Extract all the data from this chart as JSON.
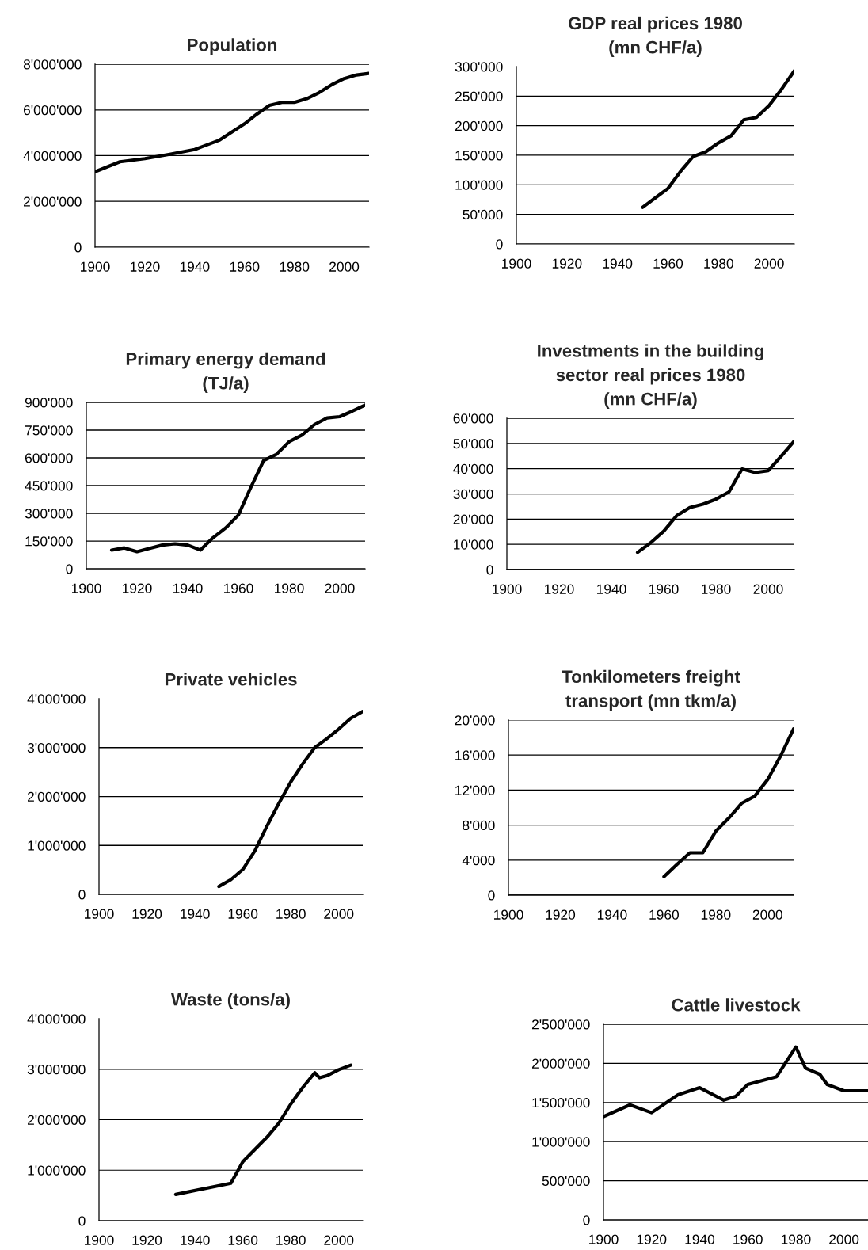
{
  "chart_data": [
    {
      "type": "line",
      "title": "Population",
      "color": "#000000",
      "grid": "y",
      "xlim": [
        1900,
        2010
      ],
      "xticks": [
        1900,
        1920,
        1940,
        1960,
        1980,
        2000
      ],
      "ylim": [
        0,
        8000000
      ],
      "yticks": [
        {
          "value": 0,
          "label": "0"
        },
        {
          "value": 2000000,
          "label": "2'000'000"
        },
        {
          "value": 4000000,
          "label": "4'000'000"
        },
        {
          "value": 6000000,
          "label": "6'000'000"
        },
        {
          "value": 8000000,
          "label": "8'000'000"
        }
      ],
      "x": [
        1900,
        1910,
        1920,
        1930,
        1940,
        1950,
        1960,
        1965,
        1970,
        1975,
        1980,
        1985,
        1990,
        1995,
        2000,
        2005,
        2010
      ],
      "values": [
        3300000,
        3730000,
        3870000,
        4060000,
        4270000,
        4680000,
        5390000,
        5820000,
        6200000,
        6330000,
        6330000,
        6490000,
        6760000,
        7100000,
        7370000,
        7530000,
        7600000
      ]
    },
    {
      "type": "line",
      "title": "GDP real prices 1980\n(mn CHF/a)",
      "color": "#000000",
      "grid": "y",
      "xlim": [
        1900,
        2010
      ],
      "xticks": [
        1900,
        1920,
        1940,
        1960,
        1980,
        2000
      ],
      "ylim": [
        0,
        300000
      ],
      "yticks": [
        {
          "value": 0,
          "label": "0"
        },
        {
          "value": 50000,
          "label": "50'000"
        },
        {
          "value": 100000,
          "label": "100'000"
        },
        {
          "value": 150000,
          "label": "150'000"
        },
        {
          "value": 200000,
          "label": "200'000"
        },
        {
          "value": 250000,
          "label": "250'000"
        },
        {
          "value": 300000,
          "label": "300'000"
        }
      ],
      "x": [
        1950,
        1955,
        1960,
        1965,
        1970,
        1975,
        1980,
        1985,
        1990,
        1995,
        2000,
        2005,
        2010
      ],
      "values": [
        62000,
        78000,
        94000,
        123000,
        148000,
        156000,
        171000,
        183000,
        210000,
        214000,
        234000,
        262000,
        293000
      ]
    },
    {
      "type": "line",
      "title": "Primary energy demand\n(TJ/a)",
      "color": "#000000",
      "grid": "y",
      "xlim": [
        1900,
        2010
      ],
      "xticks": [
        1900,
        1920,
        1940,
        1960,
        1980,
        2000
      ],
      "ylim": [
        0,
        900000
      ],
      "yticks": [
        {
          "value": 0,
          "label": "0"
        },
        {
          "value": 150000,
          "label": "150'000"
        },
        {
          "value": 300000,
          "label": "300'000"
        },
        {
          "value": 450000,
          "label": "450'000"
        },
        {
          "value": 600000,
          "label": "600'000"
        },
        {
          "value": 750000,
          "label": "750'000"
        },
        {
          "value": 900000,
          "label": "900'000"
        }
      ],
      "x": [
        1910,
        1915,
        1920,
        1925,
        1930,
        1935,
        1940,
        1945,
        1950,
        1955,
        1960,
        1965,
        1970,
        1975,
        1980,
        1985,
        1990,
        1995,
        2000,
        2005,
        2010
      ],
      "values": [
        101000,
        113000,
        92000,
        110000,
        128000,
        135000,
        128000,
        101000,
        168000,
        221000,
        291000,
        443000,
        586000,
        619000,
        687000,
        723000,
        780000,
        816000,
        823000,
        853000,
        885000
      ]
    },
    {
      "type": "line",
      "title": "Investments in the building\nsector real prices 1980\n(mn CHF/a)",
      "color": "#000000",
      "grid": "y",
      "xlim": [
        1900,
        2010
      ],
      "xticks": [
        1900,
        1920,
        1940,
        1960,
        1980,
        2000
      ],
      "ylim": [
        0,
        60000
      ],
      "yticks": [
        {
          "value": 0,
          "label": "0"
        },
        {
          "value": 10000,
          "label": "10'000"
        },
        {
          "value": 20000,
          "label": "20'000"
        },
        {
          "value": 30000,
          "label": "30'000"
        },
        {
          "value": 40000,
          "label": "40'000"
        },
        {
          "value": 50000,
          "label": "50'000"
        },
        {
          "value": 60000,
          "label": "60'000"
        }
      ],
      "x": [
        1950,
        1955,
        1960,
        1965,
        1970,
        1975,
        1980,
        1985,
        1990,
        1995,
        2000,
        2005,
        2010
      ],
      "values": [
        6800,
        10600,
        15200,
        21400,
        24600,
        25900,
        27900,
        30800,
        39900,
        38500,
        39200,
        45000,
        51000
      ]
    },
    {
      "type": "line",
      "title": "Private vehicles",
      "color": "#000000",
      "grid": "y",
      "xlim": [
        1900,
        2010
      ],
      "xticks": [
        1900,
        1920,
        1940,
        1960,
        1980,
        2000
      ],
      "ylim": [
        0,
        4000000
      ],
      "yticks": [
        {
          "value": 0,
          "label": "0"
        },
        {
          "value": 1000000,
          "label": "1'000'000"
        },
        {
          "value": 2000000,
          "label": "2'000'000"
        },
        {
          "value": 3000000,
          "label": "3'000'000"
        },
        {
          "value": 4000000,
          "label": "4'000'000"
        }
      ],
      "x": [
        1950,
        1955,
        1960,
        1965,
        1970,
        1975,
        1980,
        1985,
        1990,
        1995,
        2000,
        2005,
        2010
      ],
      "values": [
        160000,
        300000,
        510000,
        890000,
        1390000,
        1860000,
        2300000,
        2670000,
        3000000,
        3180000,
        3380000,
        3600000,
        3740000
      ]
    },
    {
      "type": "line",
      "title": "Tonkilometers freight\ntransport (mn tkm/a)",
      "color": "#000000",
      "grid": "y",
      "xlim": [
        1900,
        2010
      ],
      "xticks": [
        1900,
        1920,
        1940,
        1960,
        1980,
        2000
      ],
      "ylim": [
        0,
        20000
      ],
      "yticks": [
        {
          "value": 0,
          "label": "0"
        },
        {
          "value": 4000,
          "label": "4'000"
        },
        {
          "value": 8000,
          "label": "8'000"
        },
        {
          "value": 12000,
          "label": "12'000"
        },
        {
          "value": 16000,
          "label": "16'000"
        },
        {
          "value": 20000,
          "label": "20'000"
        }
      ],
      "x": [
        1960,
        1965,
        1970,
        1975,
        1980,
        1985,
        1990,
        1995,
        2000,
        2005,
        2010
      ],
      "values": [
        2100,
        3500,
        4840,
        4840,
        7300,
        8800,
        10500,
        11300,
        13200,
        15900,
        19000
      ]
    },
    {
      "type": "line",
      "title": "Waste (tons/a)",
      "color": "#000000",
      "grid": "y",
      "xlim": [
        1900,
        2010
      ],
      "xticks": [
        1900,
        1920,
        1940,
        1960,
        1980,
        2000
      ],
      "ylim": [
        0,
        4000000
      ],
      "yticks": [
        {
          "value": 0,
          "label": "0"
        },
        {
          "value": 1000000,
          "label": "1'000'000"
        },
        {
          "value": 2000000,
          "label": "2'000'000"
        },
        {
          "value": 3000000,
          "label": "3'000'000"
        },
        {
          "value": 4000000,
          "label": "4'000'000"
        }
      ],
      "x": [
        1932,
        1955,
        1960,
        1970,
        1975,
        1980,
        1985,
        1990,
        1992,
        1995,
        2000,
        2005
      ],
      "values": [
        520000,
        740000,
        1170000,
        1650000,
        1930000,
        2310000,
        2640000,
        2930000,
        2830000,
        2870000,
        2990000,
        3080000
      ]
    },
    {
      "type": "line",
      "title": "Cattle livestock",
      "color": "#000000",
      "grid": "y",
      "xlim": [
        1900,
        2010
      ],
      "xticks": [
        1900,
        1920,
        1940,
        1960,
        1980,
        2000
      ],
      "ylim": [
        0,
        2500000
      ],
      "yticks": [
        {
          "value": 0,
          "label": "0"
        },
        {
          "value": 500000,
          "label": "500'000"
        },
        {
          "value": 1000000,
          "label": "1'000'000"
        },
        {
          "value": 1500000,
          "label": "1'500'000"
        },
        {
          "value": 2000000,
          "label": "2'000'000"
        },
        {
          "value": 2500000,
          "label": "2'500'000"
        }
      ],
      "x": [
        1900,
        1911,
        1920,
        1931,
        1940,
        1950,
        1955,
        1960,
        1972,
        1980,
        1984,
        1990,
        1993,
        2000,
        2010
      ],
      "values": [
        1320000,
        1470000,
        1370000,
        1600000,
        1690000,
        1530000,
        1580000,
        1730000,
        1830000,
        2210000,
        1940000,
        1860000,
        1730000,
        1650000,
        1650000
      ]
    }
  ]
}
